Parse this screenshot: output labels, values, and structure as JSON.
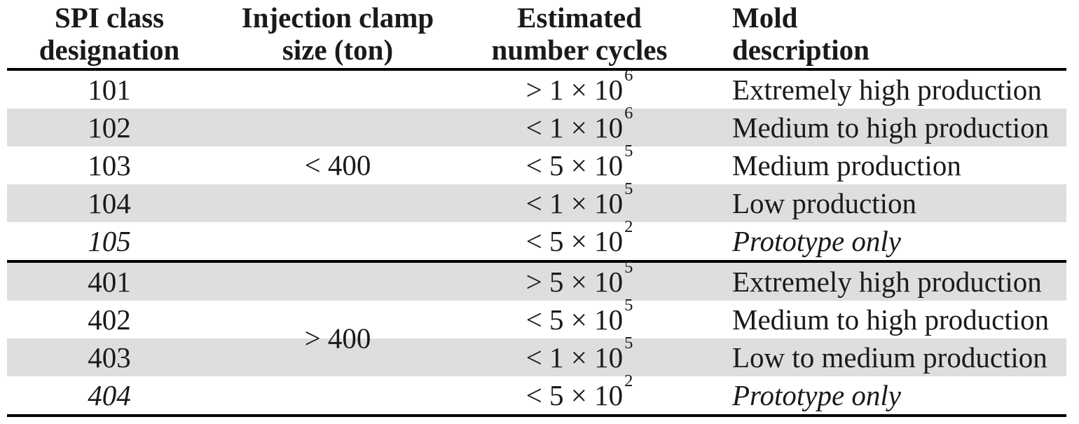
{
  "table": {
    "columns": [
      {
        "line1": "SPI class",
        "line2": "designation"
      },
      {
        "line1": "Injection clamp",
        "line2": "size (ton)"
      },
      {
        "line1": "Estimated",
        "line2": "number cycles"
      },
      {
        "line1": "Mold",
        "line2": "description"
      }
    ],
    "clamp_groups": [
      {
        "label": "< 400"
      },
      {
        "label": "> 400"
      }
    ],
    "rows": [
      {
        "class": "101",
        "cycles_base": "> 1 × 10",
        "cycles_exp": "6",
        "description": "Extremely high production"
      },
      {
        "class": "102",
        "cycles_base": "< 1 × 10",
        "cycles_exp": "6",
        "description": "Medium to high production"
      },
      {
        "class": "103",
        "cycles_base": "< 5 × 10",
        "cycles_exp": "5",
        "description": "Medium production"
      },
      {
        "class": "104",
        "cycles_base": "< 1 × 10",
        "cycles_exp": "5",
        "description": "Low production"
      },
      {
        "class": "105",
        "cycles_base": "< 5 × 10",
        "cycles_exp": "2",
        "description": "Prototype only"
      },
      {
        "class": "401",
        "cycles_base": "> 5 × 10",
        "cycles_exp": "5",
        "description": "Extremely high production"
      },
      {
        "class": "402",
        "cycles_base": "< 5 × 10",
        "cycles_exp": "5",
        "description": "Medium to high production"
      },
      {
        "class": "403",
        "cycles_base": "< 1 × 10",
        "cycles_exp": "5",
        "description": "Low to medium production"
      },
      {
        "class": "404",
        "cycles_base": "< 5 × 10",
        "cycles_exp": "2",
        "description": "Prototype only"
      }
    ],
    "colors": {
      "stripe": "#dedede",
      "rule": "#000000",
      "text": "#1a1a1a"
    }
  }
}
